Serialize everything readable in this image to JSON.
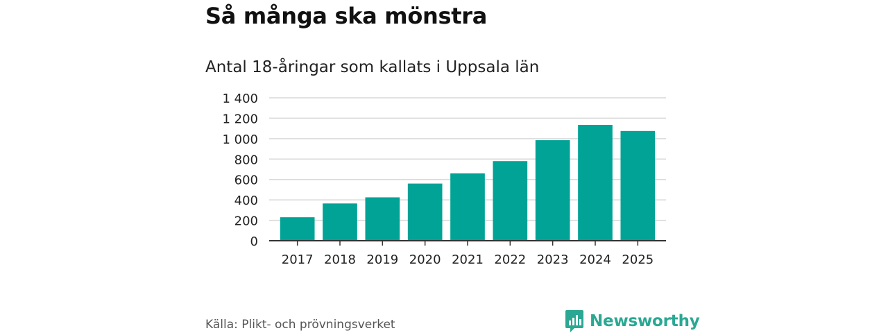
{
  "title": "Så många ska mönstra",
  "subtitle": "Antal 18-åringar som kallats i Uppsala län",
  "source": "Källa: Plikt- och prövningsverket",
  "brand": {
    "name": "Newsworthy",
    "icon": "newsworthy-logo-icon"
  },
  "colors": {
    "bar": "#00a396",
    "grid": "#d9d9d9",
    "axis": "#333333",
    "brand": "#2aa893"
  },
  "chart_data": {
    "type": "bar",
    "title": "Så många ska mönstra",
    "subtitle": "Antal 18-åringar som kallats i Uppsala län",
    "xlabel": "",
    "ylabel": "",
    "categories": [
      "2017",
      "2018",
      "2019",
      "2020",
      "2021",
      "2022",
      "2023",
      "2024",
      "2025"
    ],
    "values": [
      230,
      365,
      425,
      560,
      660,
      780,
      985,
      1135,
      1075
    ],
    "ylim": [
      0,
      1400
    ],
    "yticks": [
      0,
      200,
      400,
      600,
      800,
      1000,
      1200,
      1400
    ],
    "ytick_labels": [
      "0",
      "200",
      "400",
      "600",
      "800",
      "1 000",
      "1 200",
      "1 400"
    ],
    "grid": true,
    "legend": "none"
  }
}
